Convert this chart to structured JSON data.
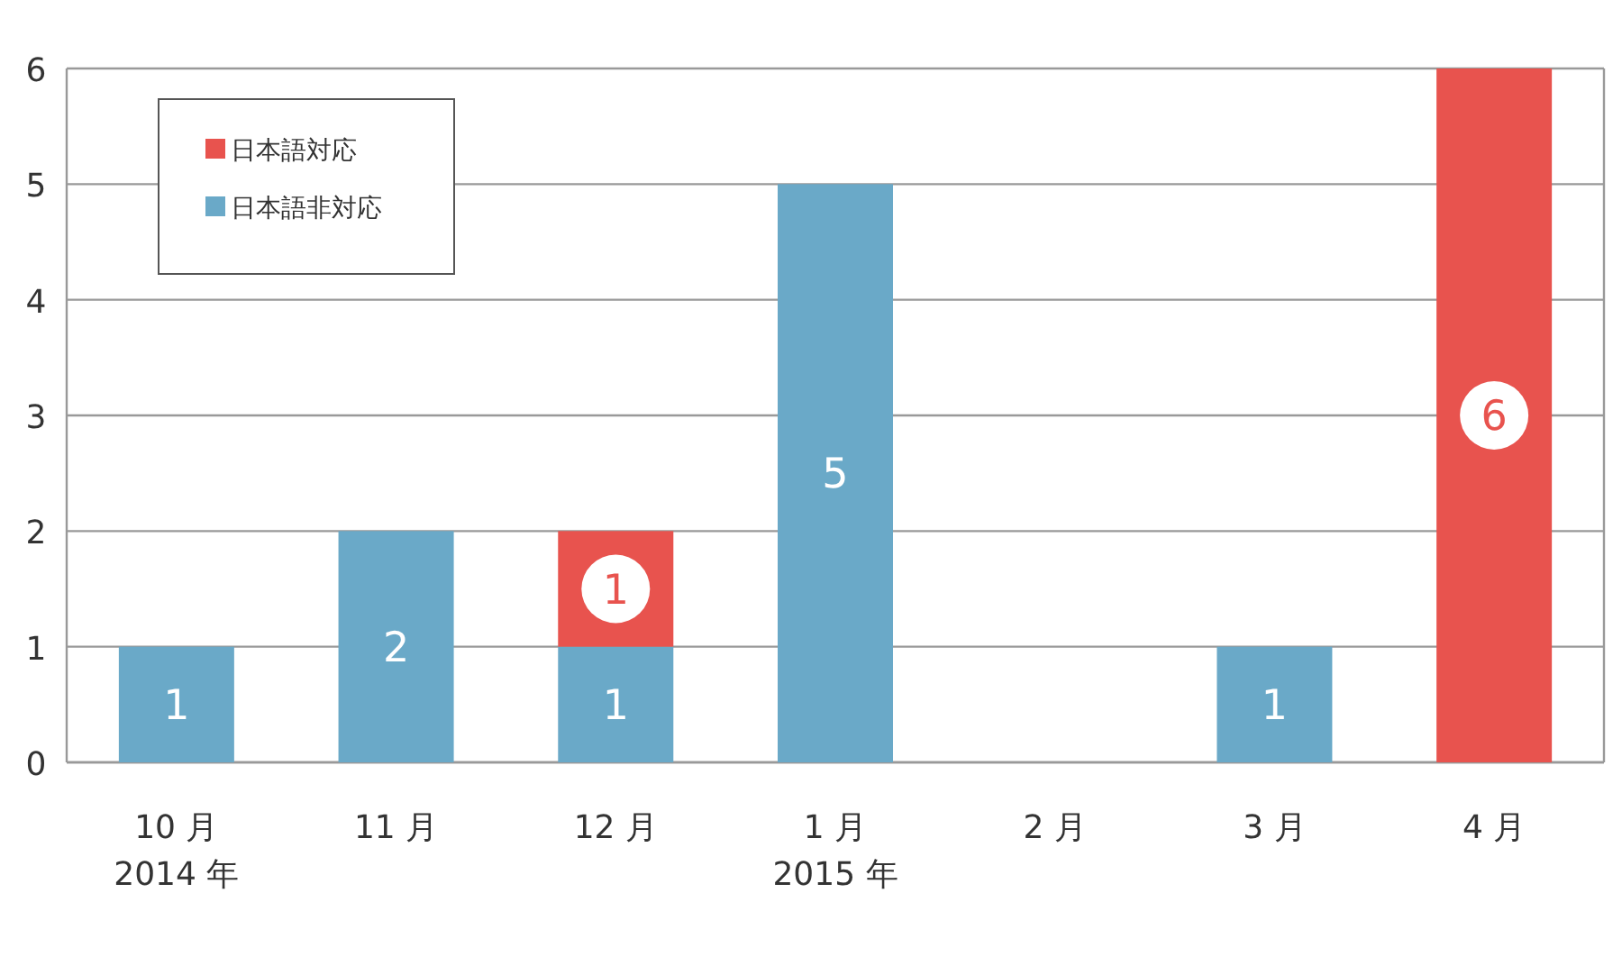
{
  "chart_data": {
    "type": "bar",
    "stacked": true,
    "categories": [
      "10 月\n2014 年",
      "11 月",
      "12 月",
      "1 月\n2015 年",
      "2 月",
      "3 月",
      "4 月"
    ],
    "series": [
      {
        "name": "日本語非対応",
        "color": "#6aa9c8",
        "values": [
          1,
          2,
          1,
          5,
          null,
          1,
          null
        ]
      },
      {
        "name": "日本語対応",
        "color": "#e8534e",
        "values": [
          null,
          null,
          1,
          null,
          null,
          null,
          6
        ]
      }
    ],
    "ylim": [
      0,
      6
    ],
    "yticks": [
      0,
      1,
      2,
      3,
      4,
      5,
      6
    ],
    "grid": "y",
    "legend": "top left",
    "data_labels": true
  }
}
